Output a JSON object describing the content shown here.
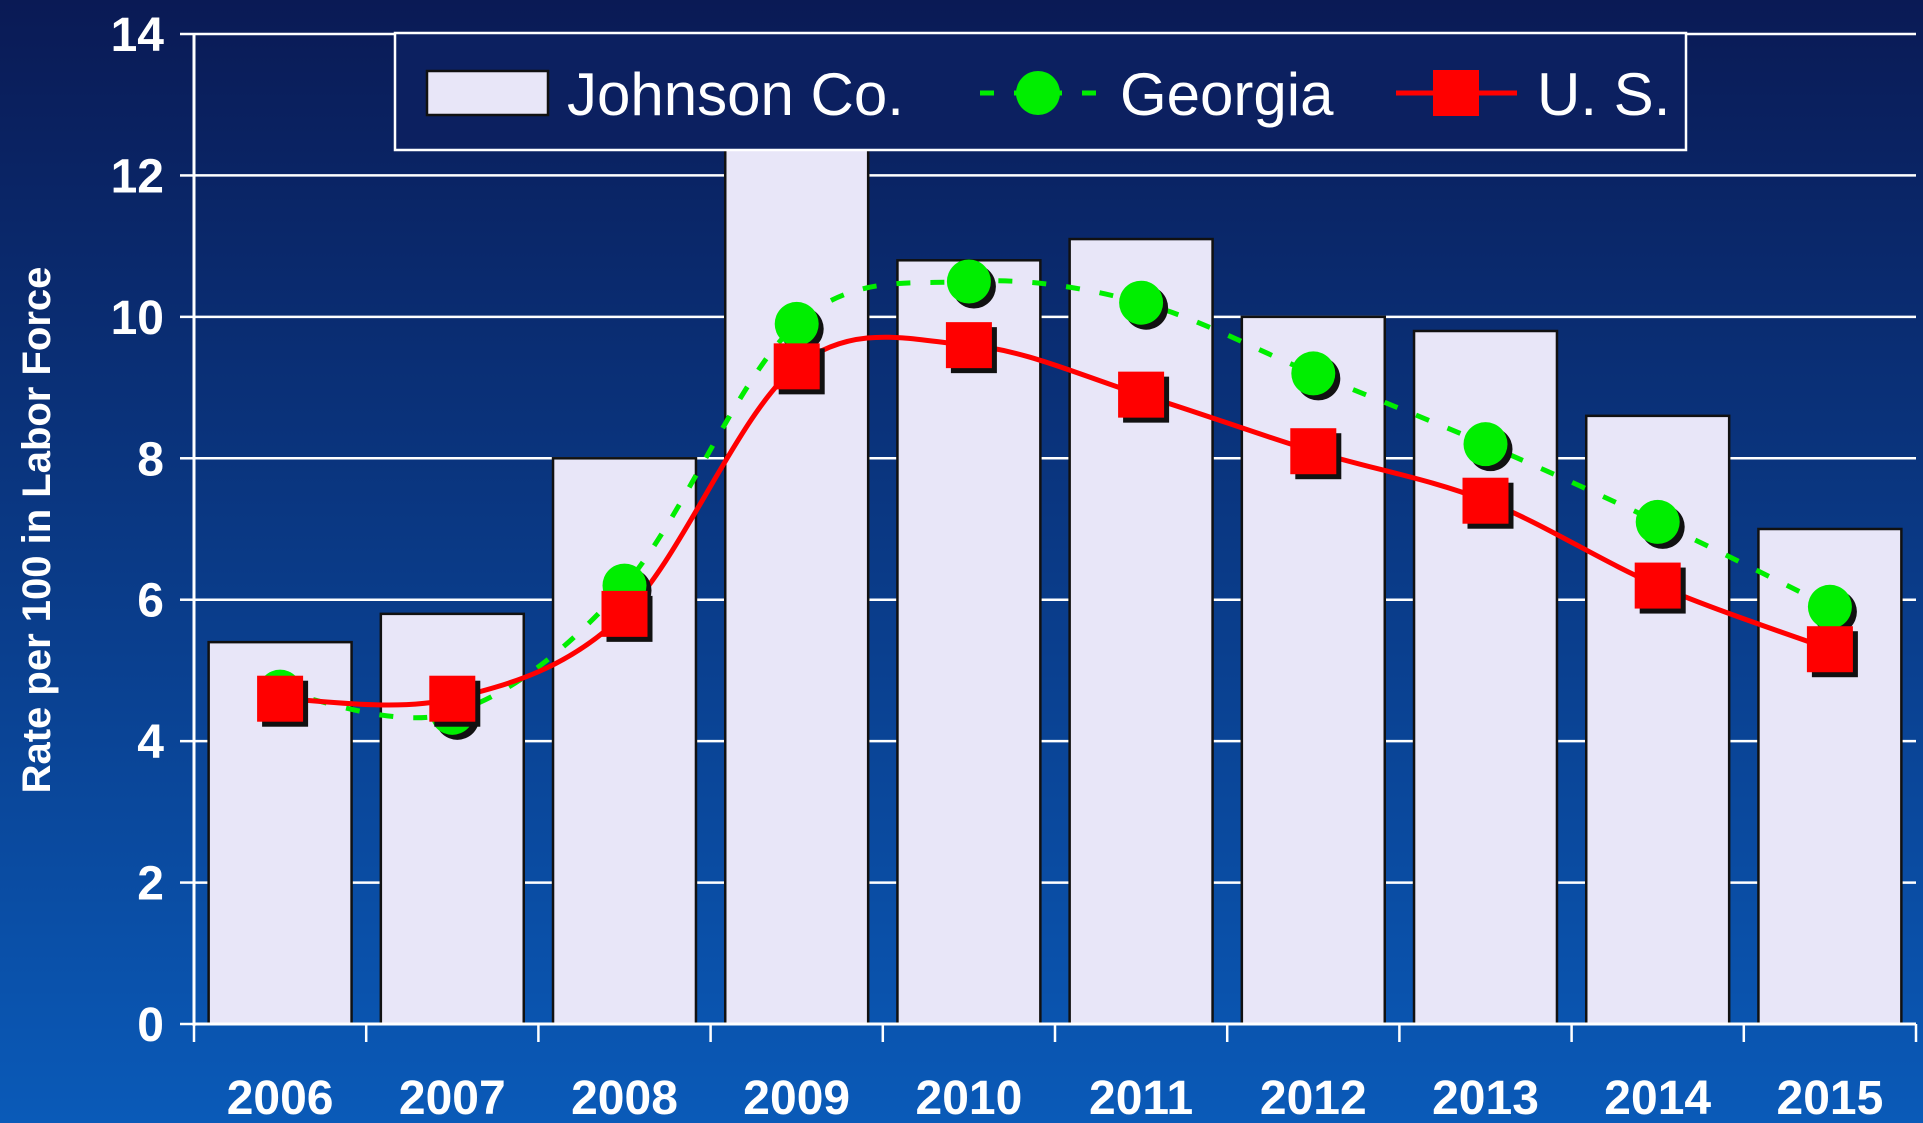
{
  "chart_data": {
    "type": "bar-line",
    "y_label": "Rate per 100 in Labor Force",
    "categories": [
      "2006",
      "2007",
      "2008",
      "2009",
      "2010",
      "2011",
      "2012",
      "2013",
      "2014",
      "2015"
    ],
    "series": [
      {
        "name": "Johnson Co.",
        "type": "bar",
        "color": "#e8e6f8",
        "values": [
          5.4,
          5.8,
          8.0,
          12.5,
          10.8,
          11.1,
          10.0,
          9.8,
          8.6,
          7.0
        ]
      },
      {
        "name": "Georgia",
        "type": "line",
        "color": "#00ee00",
        "dashed": true,
        "marker": "circle",
        "values": [
          4.7,
          4.4,
          6.2,
          9.9,
          10.5,
          10.2,
          9.2,
          8.2,
          7.1,
          5.9
        ]
      },
      {
        "name": "U. S.",
        "type": "line",
        "color": "#ff0000",
        "dashed": false,
        "marker": "square",
        "values": [
          4.6,
          4.6,
          5.8,
          9.3,
          9.6,
          8.9,
          8.1,
          7.4,
          6.2,
          5.3
        ]
      }
    ],
    "ylim": [
      0,
      14
    ],
    "yticks": [
      0,
      2,
      4,
      6,
      8,
      10,
      12,
      14
    ],
    "grid": true,
    "legend": "top"
  }
}
